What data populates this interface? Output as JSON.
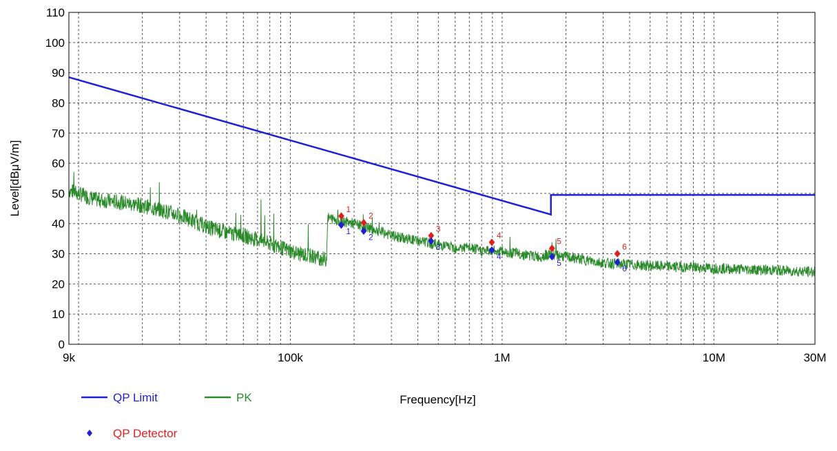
{
  "chart_data": {
    "type": "line",
    "xlabel": "Frequency[Hz]",
    "ylabel": "Level[dBμV/m]",
    "xscale": "log",
    "xlim": [
      9000,
      30000000
    ],
    "ylim": [
      0,
      110
    ],
    "yticks": [
      0,
      10,
      20,
      30,
      40,
      50,
      60,
      70,
      80,
      90,
      100,
      110
    ],
    "xtick_labels": [
      {
        "value": 9000,
        "label": "9k"
      },
      {
        "value": 100000,
        "label": "100k"
      },
      {
        "value": 1000000,
        "label": "1M"
      },
      {
        "value": 10000000,
        "label": "10M"
      },
      {
        "value": 30000000,
        "label": "30M"
      }
    ],
    "grid": true,
    "series": [
      {
        "name": "QP Limit",
        "color": "#1f1fd6",
        "points": [
          [
            9000,
            88.5
          ],
          [
            1700000,
            43
          ],
          [
            1700000,
            49.5
          ],
          [
            30000000,
            49.5
          ]
        ]
      },
      {
        "name": "PK",
        "color": "#2a8a2a",
        "envelope": [
          [
            9000,
            51
          ],
          [
            12000,
            48
          ],
          [
            16000,
            47
          ],
          [
            20000,
            46
          ],
          [
            26000,
            44
          ],
          [
            32000,
            42
          ],
          [
            40000,
            39
          ],
          [
            50000,
            37
          ],
          [
            60000,
            36
          ],
          [
            75000,
            34
          ],
          [
            90000,
            32
          ],
          [
            110000,
            30
          ],
          [
            130000,
            29
          ],
          [
            148000,
            28
          ],
          [
            150000,
            42
          ],
          [
            170000,
            41
          ],
          [
            200000,
            40
          ],
          [
            250000,
            38
          ],
          [
            300000,
            36
          ],
          [
            350000,
            35
          ],
          [
            420000,
            34
          ],
          [
            500000,
            33
          ],
          [
            600000,
            32
          ],
          [
            700000,
            32
          ],
          [
            800000,
            31
          ],
          [
            950000,
            31
          ],
          [
            1200000,
            30
          ],
          [
            1500000,
            29
          ],
          [
            1700000,
            30
          ],
          [
            2000000,
            29
          ],
          [
            3000000,
            27
          ],
          [
            5000000,
            26
          ],
          [
            8000000,
            25.5
          ],
          [
            12000000,
            25
          ],
          [
            20000000,
            24.5
          ],
          [
            30000000,
            24
          ]
        ]
      }
    ],
    "markers": [
      {
        "label": "1",
        "freq": 174000,
        "qp": 39.5,
        "pk": 42.5
      },
      {
        "label": "2",
        "freq": 222000,
        "qp": 37.5,
        "pk": 40.3
      },
      {
        "label": "3",
        "freq": 462000,
        "qp": 34.2,
        "pk": 36.0
      },
      {
        "label": "4",
        "freq": 894000,
        "qp": 31.2,
        "pk": 33.8
      },
      {
        "label": "5",
        "freq": 1720000,
        "qp": 29.0,
        "pk": 31.8
      },
      {
        "label": "6",
        "freq": 3500000,
        "qp": 27.2,
        "pk": 30.0
      }
    ],
    "legend": [
      {
        "label": "QP Limit",
        "color": "#1f1fd6",
        "kind": "line"
      },
      {
        "label": "PK",
        "color": "#2a8a2a",
        "kind": "line"
      },
      {
        "label": "QP Detector",
        "color": "#e02020",
        "kind": "marker"
      }
    ],
    "colors": {
      "qp_marker": "#1f1fd6",
      "pk_marker": "#e02020",
      "grid": "#555555"
    }
  }
}
